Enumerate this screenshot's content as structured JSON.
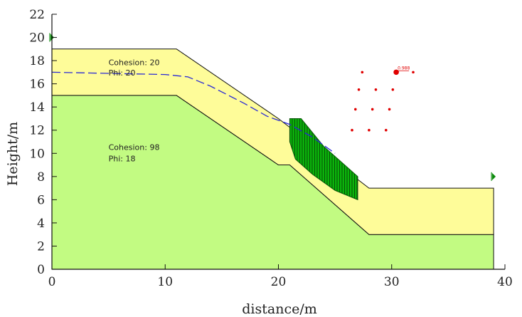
{
  "chart_data": {
    "type": "slope-stability",
    "xlabel": "distance/m",
    "ylabel": "Height/m",
    "xlim": [
      0,
      40
    ],
    "ylim": [
      0,
      22
    ],
    "xticks": [
      0,
      10,
      20,
      30,
      40
    ],
    "yticks": [
      0,
      2,
      4,
      6,
      8,
      10,
      12,
      14,
      16,
      18,
      20,
      22
    ],
    "layers": [
      {
        "name": "lower-soil",
        "cohesion_label": "Cohesion: 98",
        "phi_label": "Phi: 18",
        "cohesion": 98,
        "phi": 18,
        "color": "#c2fb82",
        "polygon": [
          [
            0,
            0
          ],
          [
            39,
            0
          ],
          [
            39,
            3
          ],
          [
            28,
            3
          ],
          [
            21,
            9
          ],
          [
            20,
            9
          ],
          [
            11,
            15
          ],
          [
            0,
            15
          ]
        ]
      },
      {
        "name": "upper-soil",
        "cohesion_label": "Cohesion: 20",
        "phi_label": "Phi: 20",
        "cohesion": 20,
        "phi": 20,
        "color": "#fefc99",
        "polygon": [
          [
            0,
            15
          ],
          [
            11,
            15
          ],
          [
            20,
            9
          ],
          [
            21,
            9
          ],
          [
            28,
            3
          ],
          [
            39,
            3
          ],
          [
            39,
            7
          ],
          [
            28,
            7
          ],
          [
            20,
            13
          ],
          [
            11,
            19
          ],
          [
            0,
            19
          ]
        ]
      }
    ],
    "water_table": [
      [
        0,
        17
      ],
      [
        10,
        16.8
      ],
      [
        12,
        16.6
      ],
      [
        14,
        15.8
      ],
      [
        17,
        14.3
      ],
      [
        19,
        13.2
      ],
      [
        21,
        12.5
      ],
      [
        23,
        11.4
      ],
      [
        25,
        10
      ]
    ],
    "slip_mass": {
      "color": "#0bb20b",
      "boundary": [
        [
          21,
          13
        ],
        [
          22,
          13
        ],
        [
          24,
          10.6
        ],
        [
          27,
          8
        ],
        [
          27,
          6
        ],
        [
          25,
          6.8
        ],
        [
          23,
          8.2
        ],
        [
          21.5,
          9.5
        ],
        [
          21,
          11
        ]
      ]
    },
    "search_grid": {
      "color": "#e00000",
      "points": [
        [
          26.5,
          12
        ],
        [
          28,
          12
        ],
        [
          29.5,
          12
        ],
        [
          26.8,
          13.8
        ],
        [
          28.3,
          13.8
        ],
        [
          29.8,
          13.8
        ],
        [
          27.1,
          15.5
        ],
        [
          28.6,
          15.5
        ],
        [
          30.1,
          15.5
        ],
        [
          27.4,
          17
        ],
        [
          30.4,
          17
        ],
        [
          31.9,
          17
        ]
      ],
      "critical_center": [
        30.4,
        17
      ],
      "fos_label": "0.988"
    },
    "markers": [
      {
        "name": "left-water-marker",
        "x": 0,
        "y": 20
      },
      {
        "name": "right-water-marker",
        "x": 39,
        "y": 8
      }
    ]
  }
}
